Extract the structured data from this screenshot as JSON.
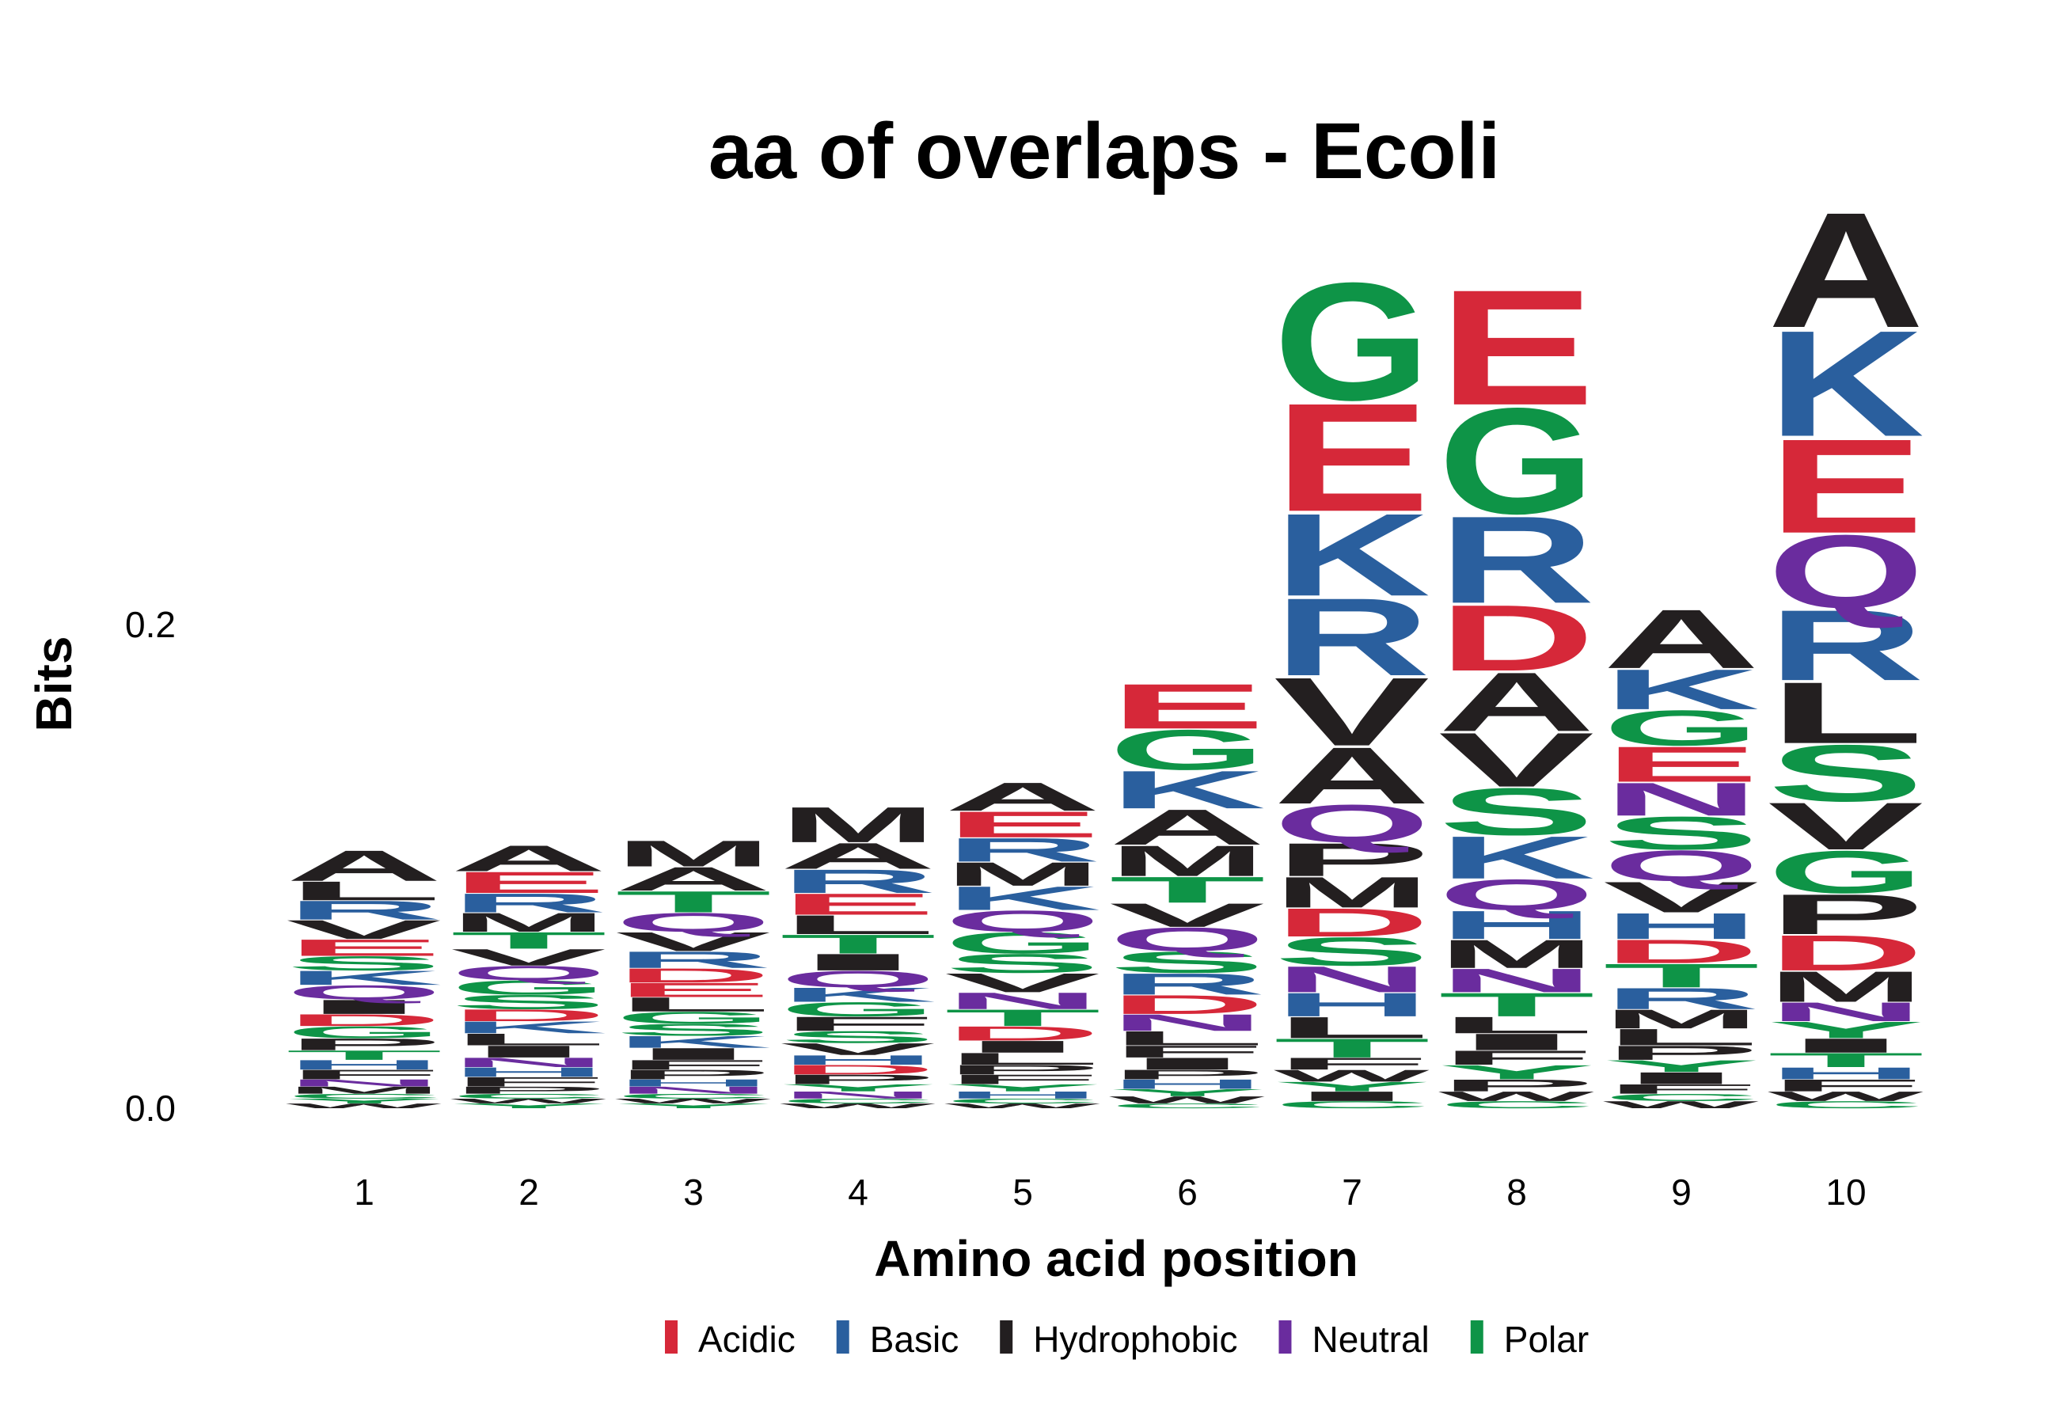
{
  "chart_data": {
    "type": "sequence-logo",
    "title": "aa of overlaps - Ecoli",
    "xlabel": "Amino acid position",
    "ylabel": "Bits",
    "ylim": [
      0,
      0.36
    ],
    "y_ticks": [
      {
        "value": 0.0,
        "label": "0.0"
      },
      {
        "value": 0.2,
        "label": "0.2"
      }
    ],
    "positions": [
      "1",
      "2",
      "3",
      "4",
      "5",
      "6",
      "7",
      "8",
      "9",
      "10"
    ],
    "legend": {
      "position": "bottom",
      "entries": [
        {
          "group": "Acidic",
          "label": "Acidic",
          "color": "#d62839"
        },
        {
          "group": "Basic",
          "label": "Basic",
          "color": "#2a5f9e"
        },
        {
          "group": "Hydrophobic",
          "label": "Hydrophobic",
          "color": "#231f20"
        },
        {
          "group": "Neutral",
          "label": "Neutral",
          "color": "#6a2c9e"
        },
        {
          "group": "Polar",
          "label": "Polar",
          "color": "#0e9447"
        }
      ]
    },
    "residue_groups": {
      "D": "Acidic",
      "E": "Acidic",
      "K": "Basic",
      "R": "Basic",
      "H": "Basic",
      "A": "Hydrophobic",
      "V": "Hydrophobic",
      "L": "Hydrophobic",
      "I": "Hydrophobic",
      "P": "Hydrophobic",
      "W": "Hydrophobic",
      "F": "Hydrophobic",
      "M": "Hydrophobic",
      "Q": "Neutral",
      "N": "Neutral",
      "G": "Polar",
      "S": "Polar",
      "T": "Polar",
      "Y": "Polar",
      "C": "Polar"
    },
    "columns": [
      {
        "position": "1",
        "residues": [
          {
            "aa": "A",
            "bits": 0.013
          },
          {
            "aa": "V",
            "bits": 0.008
          },
          {
            "aa": "R",
            "bits": 0.008
          },
          {
            "aa": "L",
            "bits": 0.008
          },
          {
            "aa": "E",
            "bits": 0.007
          },
          {
            "aa": "I",
            "bits": 0.006
          },
          {
            "aa": "Q",
            "bits": 0.006
          },
          {
            "aa": "K",
            "bits": 0.006
          },
          {
            "aa": "S",
            "bits": 0.006
          },
          {
            "aa": "P",
            "bits": 0.005
          },
          {
            "aa": "G",
            "bits": 0.005
          },
          {
            "aa": "D",
            "bits": 0.005
          },
          {
            "aa": "F",
            "bits": 0.004
          },
          {
            "aa": "H",
            "bits": 0.004
          },
          {
            "aa": "T",
            "bits": 0.004
          },
          {
            "aa": "M",
            "bits": 0.003
          },
          {
            "aa": "N",
            "bits": 0.003
          },
          {
            "aa": "W",
            "bits": 0.002
          },
          {
            "aa": "Y",
            "bits": 0.002
          },
          {
            "aa": "C",
            "bits": 0.002
          }
        ]
      },
      {
        "position": "2",
        "residues": [
          {
            "aa": "A",
            "bits": 0.011
          },
          {
            "aa": "E",
            "bits": 0.009
          },
          {
            "aa": "M",
            "bits": 0.008
          },
          {
            "aa": "V",
            "bits": 0.007
          },
          {
            "aa": "R",
            "bits": 0.008
          },
          {
            "aa": "T",
            "bits": 0.007
          },
          {
            "aa": "S",
            "bits": 0.006
          },
          {
            "aa": "G",
            "bits": 0.006
          },
          {
            "aa": "Q",
            "bits": 0.006
          },
          {
            "aa": "I",
            "bits": 0.005
          },
          {
            "aa": "L",
            "bits": 0.005
          },
          {
            "aa": "K",
            "bits": 0.005
          },
          {
            "aa": "D",
            "bits": 0.005
          },
          {
            "aa": "F",
            "bits": 0.004
          },
          {
            "aa": "H",
            "bits": 0.004
          },
          {
            "aa": "N",
            "bits": 0.004
          },
          {
            "aa": "P",
            "bits": 0.003
          },
          {
            "aa": "Y",
            "bits": 0.002
          },
          {
            "aa": "W",
            "bits": 0.002
          },
          {
            "aa": "C",
            "bits": 0.002
          }
        ]
      },
      {
        "position": "3",
        "residues": [
          {
            "aa": "M",
            "bits": 0.011
          },
          {
            "aa": "A",
            "bits": 0.01
          },
          {
            "aa": "T",
            "bits": 0.009
          },
          {
            "aa": "V",
            "bits": 0.008
          },
          {
            "aa": "Q",
            "bits": 0.008
          },
          {
            "aa": "R",
            "bits": 0.007
          },
          {
            "aa": "L",
            "bits": 0.006
          },
          {
            "aa": "E",
            "bits": 0.006
          },
          {
            "aa": "D",
            "bits": 0.006
          },
          {
            "aa": "I",
            "bits": 0.005
          },
          {
            "aa": "K",
            "bits": 0.005
          },
          {
            "aa": "S",
            "bits": 0.005
          },
          {
            "aa": "G",
            "bits": 0.005
          },
          {
            "aa": "P",
            "bits": 0.004
          },
          {
            "aa": "F",
            "bits": 0.004
          },
          {
            "aa": "N",
            "bits": 0.003
          },
          {
            "aa": "H",
            "bits": 0.003
          },
          {
            "aa": "Y",
            "bits": 0.002
          },
          {
            "aa": "W",
            "bits": 0.002
          },
          {
            "aa": "C",
            "bits": 0.002
          }
        ]
      },
      {
        "position": "4",
        "residues": [
          {
            "aa": "M",
            "bits": 0.015
          },
          {
            "aa": "A",
            "bits": 0.011
          },
          {
            "aa": "R",
            "bits": 0.01
          },
          {
            "aa": "E",
            "bits": 0.009
          },
          {
            "aa": "T",
            "bits": 0.008
          },
          {
            "aa": "L",
            "bits": 0.008
          },
          {
            "aa": "Q",
            "bits": 0.007
          },
          {
            "aa": "I",
            "bits": 0.007
          },
          {
            "aa": "F",
            "bits": 0.006
          },
          {
            "aa": "G",
            "bits": 0.006
          },
          {
            "aa": "K",
            "bits": 0.006
          },
          {
            "aa": "V",
            "bits": 0.005
          },
          {
            "aa": "S",
            "bits": 0.005
          },
          {
            "aa": "P",
            "bits": 0.004
          },
          {
            "aa": "D",
            "bits": 0.004
          },
          {
            "aa": "H",
            "bits": 0.004
          },
          {
            "aa": "N",
            "bits": 0.003
          },
          {
            "aa": "Y",
            "bits": 0.003
          },
          {
            "aa": "W",
            "bits": 0.002
          },
          {
            "aa": "C",
            "bits": 0.002
          }
        ]
      },
      {
        "position": "5",
        "residues": [
          {
            "aa": "A",
            "bits": 0.012
          },
          {
            "aa": "E",
            "bits": 0.011
          },
          {
            "aa": "K",
            "bits": 0.01
          },
          {
            "aa": "M",
            "bits": 0.01
          },
          {
            "aa": "R",
            "bits": 0.01
          },
          {
            "aa": "G",
            "bits": 0.009
          },
          {
            "aa": "Q",
            "bits": 0.009
          },
          {
            "aa": "V",
            "bits": 0.008
          },
          {
            "aa": "S",
            "bits": 0.008
          },
          {
            "aa": "T",
            "bits": 0.007
          },
          {
            "aa": "N",
            "bits": 0.007
          },
          {
            "aa": "D",
            "bits": 0.006
          },
          {
            "aa": "L",
            "bits": 0.005
          },
          {
            "aa": "I",
            "bits": 0.005
          },
          {
            "aa": "F",
            "bits": 0.004
          },
          {
            "aa": "P",
            "bits": 0.004
          },
          {
            "aa": "H",
            "bits": 0.003
          },
          {
            "aa": "Y",
            "bits": 0.003
          },
          {
            "aa": "W",
            "bits": 0.002
          },
          {
            "aa": "C",
            "bits": 0.002
          }
        ]
      },
      {
        "position": "6",
        "residues": [
          {
            "aa": "E",
            "bits": 0.019
          },
          {
            "aa": "G",
            "bits": 0.017
          },
          {
            "aa": "K",
            "bits": 0.016
          },
          {
            "aa": "A",
            "bits": 0.015
          },
          {
            "aa": "M",
            "bits": 0.013
          },
          {
            "aa": "T",
            "bits": 0.011
          },
          {
            "aa": "Q",
            "bits": 0.01
          },
          {
            "aa": "V",
            "bits": 0.01
          },
          {
            "aa": "R",
            "bits": 0.009
          },
          {
            "aa": "S",
            "bits": 0.009
          },
          {
            "aa": "D",
            "bits": 0.008
          },
          {
            "aa": "N",
            "bits": 0.007
          },
          {
            "aa": "L",
            "bits": 0.006
          },
          {
            "aa": "I",
            "bits": 0.005
          },
          {
            "aa": "F",
            "bits": 0.005
          },
          {
            "aa": "H",
            "bits": 0.004
          },
          {
            "aa": "P",
            "bits": 0.004
          },
          {
            "aa": "W",
            "bits": 0.003
          },
          {
            "aa": "Y",
            "bits": 0.003
          },
          {
            "aa": "C",
            "bits": 0.002
          }
        ]
      },
      {
        "position": "7",
        "residues": [
          {
            "aa": "G",
            "bits": 0.05
          },
          {
            "aa": "E",
            "bits": 0.046
          },
          {
            "aa": "K",
            "bits": 0.035
          },
          {
            "aa": "R",
            "bits": 0.033
          },
          {
            "aa": "V",
            "bits": 0.029
          },
          {
            "aa": "A",
            "bits": 0.024
          },
          {
            "aa": "Q",
            "bits": 0.016
          },
          {
            "aa": "P",
            "bits": 0.014
          },
          {
            "aa": "M",
            "bits": 0.013
          },
          {
            "aa": "S",
            "bits": 0.012
          },
          {
            "aa": "D",
            "bits": 0.012
          },
          {
            "aa": "N",
            "bits": 0.011
          },
          {
            "aa": "H",
            "bits": 0.01
          },
          {
            "aa": "L",
            "bits": 0.009
          },
          {
            "aa": "T",
            "bits": 0.008
          },
          {
            "aa": "W",
            "bits": 0.005
          },
          {
            "aa": "F",
            "bits": 0.005
          },
          {
            "aa": "I",
            "bits": 0.004
          },
          {
            "aa": "Y",
            "bits": 0.004
          },
          {
            "aa": "C",
            "bits": 0.003
          }
        ]
      },
      {
        "position": "8",
        "residues": [
          {
            "aa": "E",
            "bits": 0.049
          },
          {
            "aa": "G",
            "bits": 0.045
          },
          {
            "aa": "R",
            "bits": 0.037
          },
          {
            "aa": "A",
            "bits": 0.025
          },
          {
            "aa": "D",
            "bits": 0.028
          },
          {
            "aa": "V",
            "bits": 0.023
          },
          {
            "aa": "S",
            "bits": 0.02
          },
          {
            "aa": "K",
            "bits": 0.018
          },
          {
            "aa": "Q",
            "bits": 0.013
          },
          {
            "aa": "M",
            "bits": 0.012
          },
          {
            "aa": "H",
            "bits": 0.012
          },
          {
            "aa": "T",
            "bits": 0.01
          },
          {
            "aa": "N",
            "bits": 0.01
          },
          {
            "aa": "I",
            "bits": 0.007
          },
          {
            "aa": "L",
            "bits": 0.007
          },
          {
            "aa": "Y",
            "bits": 0.006
          },
          {
            "aa": "F",
            "bits": 0.006
          },
          {
            "aa": "P",
            "bits": 0.005
          },
          {
            "aa": "W",
            "bits": 0.004
          },
          {
            "aa": "C",
            "bits": 0.003
          }
        ]
      },
      {
        "position": "9",
        "residues": [
          {
            "aa": "A",
            "bits": 0.025
          },
          {
            "aa": "K",
            "bits": 0.017
          },
          {
            "aa": "E",
            "bits": 0.015
          },
          {
            "aa": "G",
            "bits": 0.015
          },
          {
            "aa": "S",
            "bits": 0.014
          },
          {
            "aa": "V",
            "bits": 0.013
          },
          {
            "aa": "Q",
            "bits": 0.013
          },
          {
            "aa": "N",
            "bits": 0.014
          },
          {
            "aa": "H",
            "bits": 0.011
          },
          {
            "aa": "T",
            "bits": 0.01
          },
          {
            "aa": "D",
            "bits": 0.01
          },
          {
            "aa": "R",
            "bits": 0.009
          },
          {
            "aa": "M",
            "bits": 0.008
          },
          {
            "aa": "L",
            "bits": 0.007
          },
          {
            "aa": "P",
            "bits": 0.006
          },
          {
            "aa": "I",
            "bits": 0.005
          },
          {
            "aa": "Y",
            "bits": 0.005
          },
          {
            "aa": "F",
            "bits": 0.004
          },
          {
            "aa": "W",
            "bits": 0.003
          },
          {
            "aa": "C",
            "bits": 0.003
          }
        ]
      },
      {
        "position": "10",
        "residues": [
          {
            "aa": "A",
            "bits": 0.049
          },
          {
            "aa": "K",
            "bits": 0.045
          },
          {
            "aa": "E",
            "bits": 0.04
          },
          {
            "aa": "Q",
            "bits": 0.031
          },
          {
            "aa": "R",
            "bits": 0.03
          },
          {
            "aa": "L",
            "bits": 0.026
          },
          {
            "aa": "S",
            "bits": 0.024
          },
          {
            "aa": "V",
            "bits": 0.02
          },
          {
            "aa": "G",
            "bits": 0.018
          },
          {
            "aa": "P",
            "bits": 0.017
          },
          {
            "aa": "D",
            "bits": 0.015
          },
          {
            "aa": "M",
            "bits": 0.013
          },
          {
            "aa": "N",
            "bits": 0.008
          },
          {
            "aa": "Y",
            "bits": 0.007
          },
          {
            "aa": "T",
            "bits": 0.006
          },
          {
            "aa": "I",
            "bits": 0.006
          },
          {
            "aa": "F",
            "bits": 0.005
          },
          {
            "aa": "H",
            "bits": 0.005
          },
          {
            "aa": "W",
            "bits": 0.004
          },
          {
            "aa": "C",
            "bits": 0.003
          }
        ]
      }
    ]
  }
}
